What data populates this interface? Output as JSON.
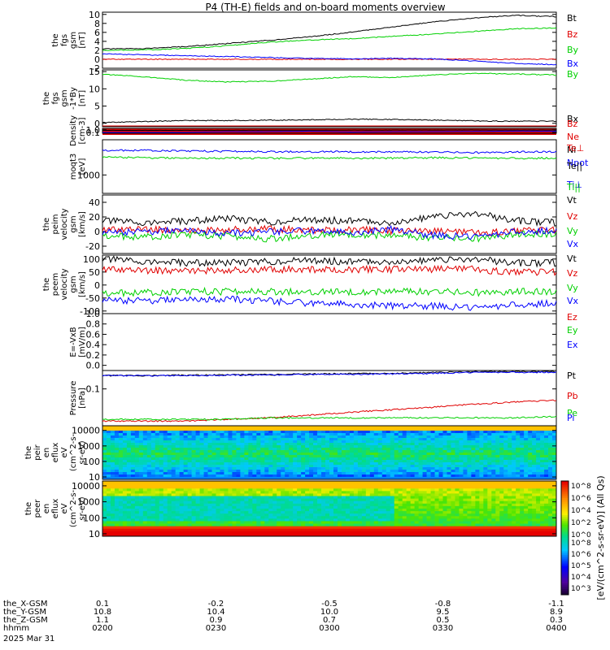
{
  "title": "P4 (TH-E) fields and on-board moments overview",
  "colors": {
    "black": "#000000",
    "red": "#e00000",
    "green": "#00d000",
    "blue": "#0000ff"
  },
  "chart_data": [
    {
      "type": "line",
      "panel": "fgs_gsm",
      "ylabel": [
        "the",
        "fgs",
        "gsm",
        "[nT]"
      ],
      "ylim": [
        -2,
        10.5
      ],
      "ticks": [
        "10",
        "8",
        "6",
        "4",
        "2",
        "0",
        "-2"
      ],
      "tick_values": [
        10,
        8,
        6,
        4,
        2,
        0,
        -2
      ],
      "series": [
        {
          "name": "Bt",
          "color": "black",
          "values": [
            2.3,
            2.4,
            2.8,
            3.5,
            4.2,
            5.0,
            6.0,
            7.2,
            8.3,
            9.2,
            9.8,
            9.5
          ]
        },
        {
          "name": "Bz",
          "color": "red",
          "values": [
            0,
            0,
            0,
            0,
            0,
            0,
            0,
            0,
            0,
            0,
            0,
            0
          ]
        },
        {
          "name": "By",
          "color": "green",
          "values": [
            2.0,
            2.1,
            2.4,
            3.0,
            3.8,
            4.3,
            4.6,
            5.1,
            5.6,
            6.2,
            6.8,
            7.0
          ]
        },
        {
          "name": "Bx",
          "color": "blue",
          "values": [
            1.2,
            1.0,
            0.8,
            0.6,
            0.4,
            0.2,
            0.1,
            0.2,
            0.1,
            -0.4,
            -0.9,
            -1.2
          ]
        }
      ]
    },
    {
      "type": "line",
      "panel": "fgs_gsm_rot",
      "ylabel": [
        "the",
        "fgs",
        "gsm",
        "-1*By",
        "[nT]"
      ],
      "ylim": [
        -1,
        15.5
      ],
      "ticks": [
        "15",
        "10",
        "5",
        "0"
      ],
      "tick_values": [
        15,
        10,
        5,
        0
      ],
      "series": [
        {
          "name": "By",
          "color": "green",
          "values": [
            14.2,
            13.5,
            12.5,
            12.0,
            12.2,
            12.8,
            13.5,
            13.3,
            14.0,
            14.5,
            14.3,
            14.0
          ]
        },
        {
          "name": "Bx",
          "color": "black",
          "values": [
            0.2,
            0.5,
            0.8,
            0.8,
            0.9,
            1.0,
            1.2,
            1.1,
            0.9,
            0.7,
            0.6,
            0.6
          ]
        },
        {
          "name": "Bz",
          "color": "red",
          "values": [
            -1,
            -1,
            -1,
            -1,
            -1,
            -1,
            -1,
            -1,
            -1,
            -1,
            -1,
            -1
          ]
        }
      ]
    },
    {
      "type": "line",
      "panel": "density",
      "ylabel": [
        "Density",
        "[cm-3]"
      ],
      "scale": "log",
      "ylim": [
        0.05,
        3.5
      ],
      "ticks": [
        "1.0",
        "0.1"
      ],
      "tick_values": [
        1.0,
        0.1
      ],
      "series": [
        {
          "name": "Ne",
          "color": "red",
          "values": []
        },
        {
          "name": "Ni",
          "color": "black",
          "values": [
            0.6,
            0.6,
            0.62,
            0.65,
            0.7,
            0.72,
            0.75,
            0.8,
            0.82,
            0.85,
            0.8,
            0.8
          ]
        },
        {
          "name": "Npot",
          "color": "blue",
          "values": [
            0.1,
            0.1,
            0.1,
            0.2,
            0.2,
            0.3,
            0.15,
            0.2,
            0.2,
            0.25,
            0.32,
            0.3
          ]
        }
      ]
    },
    {
      "type": "line",
      "panel": "temperature",
      "ylabel": [
        "moqt3",
        "[eV]"
      ],
      "scale": "log",
      "ylim": [
        300,
        10000
      ],
      "ticks": [
        "1000"
      ],
      "tick_values": [
        1000
      ],
      "series": [
        {
          "name": "Te⊥",
          "color": "red",
          "values": []
        },
        {
          "name": "Te||",
          "color": "black",
          "values": []
        },
        {
          "name": "Ti⊥",
          "color": "blue",
          "values": [
            5000,
            5000,
            4800,
            4700,
            4600,
            4600,
            4600,
            4500,
            4500,
            4300,
            4500,
            4600
          ]
        },
        {
          "name": "Ti||",
          "color": "green",
          "values": [
            3200,
            3100,
            3000,
            3000,
            3000,
            3000,
            3000,
            3000,
            3100,
            3000,
            3000,
            3000
          ]
        }
      ]
    },
    {
      "type": "line",
      "panel": "peim_velocity",
      "ylabel": [
        "the",
        "peim",
        "velocity",
        "gsm",
        "[km/s]"
      ],
      "ylim": [
        -30,
        50
      ],
      "ticks": [
        "40",
        "20",
        "0",
        "-20"
      ],
      "tick_values": [
        40,
        20,
        0,
        -20
      ],
      "series": [
        {
          "name": "Vt",
          "color": "black",
          "values": [
            15,
            12,
            14,
            18,
            13,
            16,
            15,
            12,
            20,
            25,
            15,
            12
          ]
        },
        {
          "name": "Vz",
          "color": "red",
          "values": [
            2,
            3,
            1,
            2,
            4,
            2,
            3,
            1,
            0,
            -2,
            1,
            2
          ]
        },
        {
          "name": "Vy",
          "color": "green",
          "values": [
            -5,
            -8,
            -4,
            -6,
            -10,
            -5,
            -3,
            -6,
            -8,
            -10,
            -4,
            -3
          ]
        },
        {
          "name": "Vx",
          "color": "blue",
          "values": [
            -2,
            0,
            2,
            -3,
            0,
            1,
            -2,
            3,
            -5,
            -8,
            0,
            1
          ]
        }
      ]
    },
    {
      "type": "line",
      "panel": "peem_velocity",
      "ylabel": [
        "the",
        "peem",
        "velocity",
        "gsm",
        "[km/s]"
      ],
      "ylim": [
        -110,
        115
      ],
      "ticks": [
        "100",
        "50",
        "0",
        "-50",
        "-100"
      ],
      "tick_values": [
        100,
        50,
        0,
        -50,
        -100
      ],
      "series": [
        {
          "name": "Vt",
          "color": "black",
          "values": [
            100,
            90,
            85,
            85,
            90,
            95,
            90,
            90,
            95,
            100,
            85,
            85
          ]
        },
        {
          "name": "Vz",
          "color": "red",
          "values": [
            60,
            55,
            55,
            55,
            60,
            60,
            60,
            60,
            60,
            60,
            50,
            50
          ]
        },
        {
          "name": "Vy",
          "color": "green",
          "values": [
            -30,
            -30,
            -25,
            -25,
            -25,
            -25,
            -25,
            -25,
            -25,
            -30,
            -25,
            -25
          ]
        },
        {
          "name": "Vx",
          "color": "blue",
          "values": [
            -60,
            -60,
            -55,
            -55,
            -60,
            -70,
            -75,
            -80,
            -80,
            -90,
            -75,
            -70
          ]
        }
      ]
    },
    {
      "type": "line",
      "panel": "efield",
      "ylabel": [
        "E=-VxB",
        "[mV/m]"
      ],
      "ylim": [
        -0.1,
        1.0
      ],
      "ticks": [
        "1.0",
        "0.8",
        "0.6",
        "0.4",
        "0.2",
        "0.0"
      ],
      "tick_values": [
        1.0,
        0.8,
        0.6,
        0.4,
        0.2,
        0.0
      ],
      "series": [
        {
          "name": "Ez",
          "color": "red",
          "values": []
        },
        {
          "name": "Ey",
          "color": "green",
          "values": []
        },
        {
          "name": "Ex",
          "color": "blue",
          "values": []
        }
      ]
    },
    {
      "type": "line",
      "panel": "pressure",
      "ylabel": [
        "Pressure",
        "[nPa]"
      ],
      "scale": "log",
      "ylim": [
        0.004,
        0.5
      ],
      "ticks": [
        "0.1"
      ],
      "tick_values": [
        0.1
      ],
      "series": [
        {
          "name": "Pt",
          "color": "black",
          "values": [
            0.32,
            0.32,
            0.33,
            0.34,
            0.35,
            0.37,
            0.38,
            0.39,
            0.42,
            0.45,
            0.46,
            0.46
          ]
        },
        {
          "name": "Pb",
          "color": "red",
          "values": [
            0.006,
            0.006,
            0.006,
            0.007,
            0.008,
            0.01,
            0.013,
            0.016,
            0.02,
            0.026,
            0.032,
            0.037
          ]
        },
        {
          "name": "Pe",
          "color": "green",
          "values": [
            0.007,
            0.007,
            0.007,
            0.007,
            0.008,
            0.008,
            0.008,
            0.008,
            0.008,
            0.008,
            0.008,
            0.009
          ]
        },
        {
          "name": "Pi",
          "color": "blue",
          "values": [
            0.32,
            0.32,
            0.32,
            0.33,
            0.34,
            0.35,
            0.36,
            0.37,
            0.39,
            0.42,
            0.43,
            0.43
          ]
        }
      ]
    },
    {
      "type": "heatmap",
      "panel": "peir_spectrogram",
      "ylabel": [
        "the",
        "peir",
        "en",
        "eflux",
        "eV",
        "(cm^2-s-",
        "sr-eV)"
      ],
      "scale": "log",
      "ylim": [
        7,
        20000
      ],
      "ticks": [
        "10000",
        "1000",
        "100",
        "10"
      ],
      "tick_values": [
        10000,
        1000,
        100,
        10
      ]
    },
    {
      "type": "heatmap",
      "panel": "peer_spectrogram",
      "ylabel": [
        "the",
        "peer",
        "en",
        "eflux",
        "eV",
        "(cm^2-s-",
        "sr-eV)"
      ],
      "scale": "log",
      "ylim": [
        7,
        20000
      ],
      "ticks": [
        "10000",
        "1000",
        "100",
        "10"
      ],
      "tick_values": [
        10000,
        1000,
        100,
        10
      ]
    },
    {
      "type": "colorbar",
      "label": "[eV/(cm^2-s-sr-eV)] (All Qs)",
      "ticks": [
        "10^8",
        "10^6",
        "10^4",
        "10^2",
        "10^0"
      ],
      "tick_values": [
        8,
        6,
        4,
        2,
        0
      ],
      "ticks2": [
        "10^8",
        "10^6",
        "10^5",
        "10^4",
        "10^3"
      ],
      "tick_values2": [
        8,
        6,
        5,
        4,
        3
      ]
    }
  ],
  "x_axis": {
    "rows": [
      {
        "label": "the_X-GSM",
        "values": [
          "0.1",
          "-0.2",
          "-0.5",
          "-0.8",
          "-1.1"
        ]
      },
      {
        "label": "the_Y-GSM",
        "values": [
          "10.8",
          "10.4",
          "10.0",
          "9.5",
          "8.9"
        ]
      },
      {
        "label": "the_Z-GSM",
        "values": [
          "1.1",
          "0.9",
          "0.7",
          "0.5",
          "0.3"
        ]
      },
      {
        "label": "hhmm",
        "values": [
          "0200",
          "0230",
          "0300",
          "0330",
          "0400"
        ]
      }
    ],
    "date": "2025 Mar 31"
  }
}
